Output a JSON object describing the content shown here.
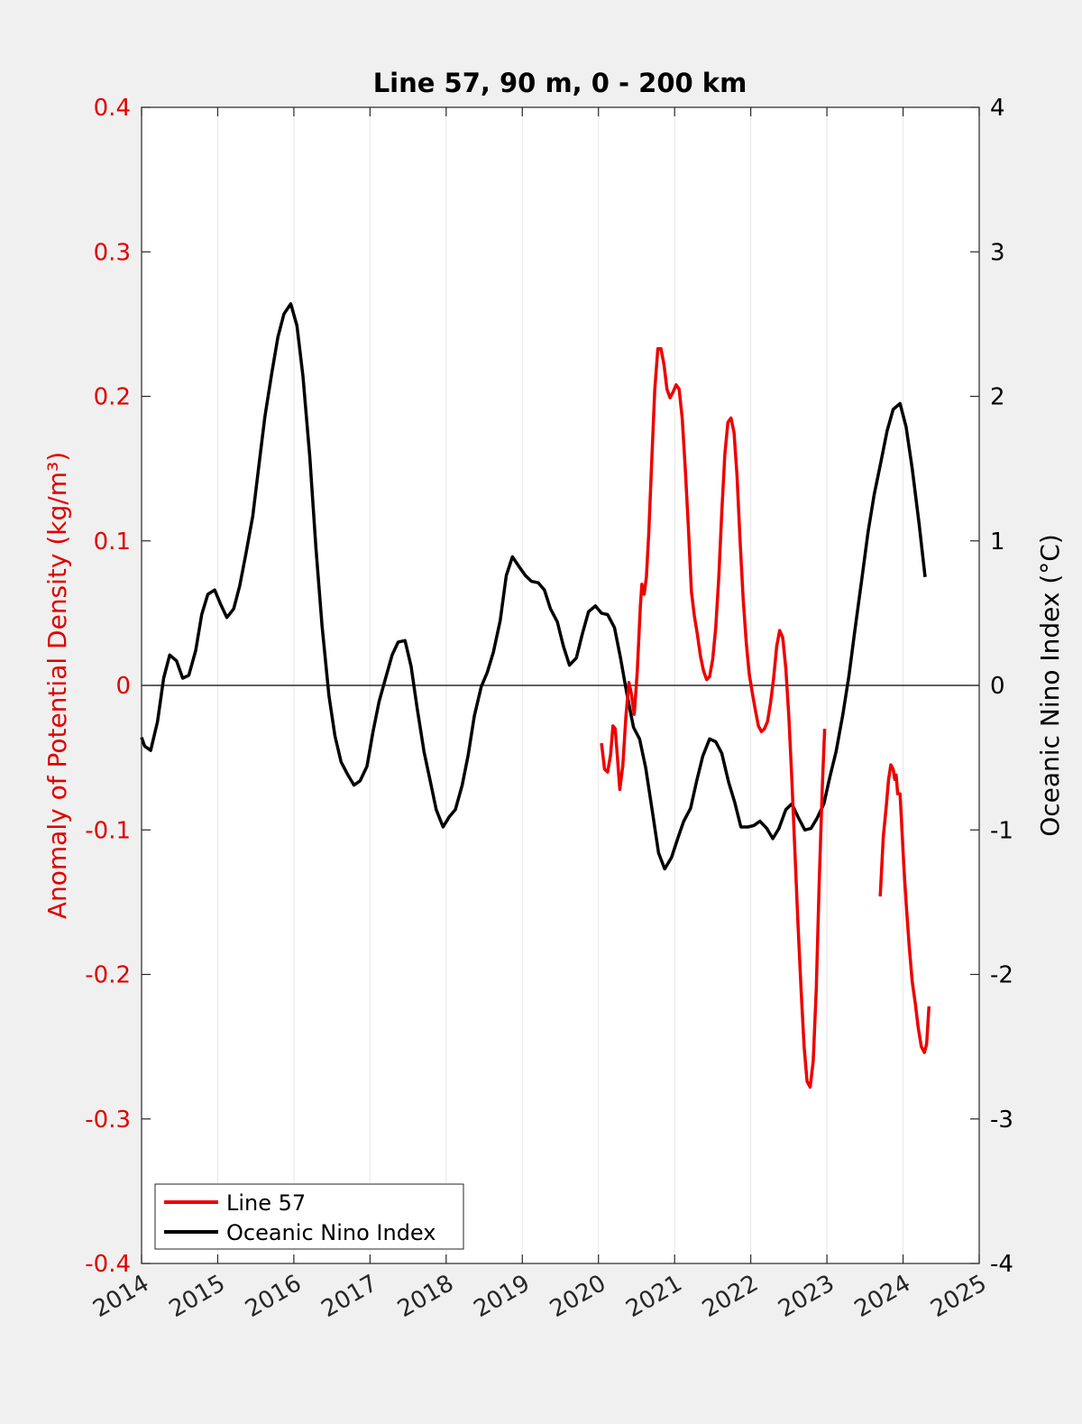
{
  "chart_data": {
    "type": "line",
    "title": "Line 57, 90 m, 0 - 200 km",
    "xlabel": "",
    "ylabel_left": "Anomaly of Potential Density (kg/m³)",
    "ylabel_right": "Oceanic Nino Index (°C)",
    "xlim": [
      2014,
      2025
    ],
    "ylim_left": [
      -0.4,
      0.4
    ],
    "ylim_right": [
      -4,
      4
    ],
    "x_ticks": [
      "2014",
      "2015",
      "2016",
      "2017",
      "2018",
      "2019",
      "2020",
      "2021",
      "2022",
      "2023",
      "2024",
      "2025"
    ],
    "y_ticks_left": [
      "-0.4",
      "-0.3",
      "-0.2",
      "-0.1",
      "0",
      "0.1",
      "0.2",
      "0.3",
      "0.4"
    ],
    "y_ticks_right": [
      "-4",
      "-3",
      "-2",
      "-1",
      "0",
      "1",
      "2",
      "3",
      "4"
    ],
    "grid": "vertical",
    "zero_line": true,
    "legend_position": "bottom-left",
    "colors": {
      "left_axis": "#e00000",
      "right_axis": "#000000",
      "figure_bg": "#f0f0f0",
      "axes_bg": "#ffffff",
      "grid": "#e6e6e6"
    },
    "series": [
      {
        "name": "Line 57",
        "axis": "left",
        "color": "#ee0000",
        "segments": [
          [
            [
              2020.04,
              -0.04
            ],
            [
              2020.08,
              -0.058
            ],
            [
              2020.12,
              -0.06
            ],
            [
              2020.16,
              -0.048
            ],
            [
              2020.19,
              -0.028
            ],
            [
              2020.22,
              -0.03
            ],
            [
              2020.25,
              -0.05
            ],
            [
              2020.28,
              -0.072
            ],
            [
              2020.32,
              -0.055
            ],
            [
              2020.36,
              -0.022
            ],
            [
              2020.4,
              0.002
            ],
            [
              2020.43,
              -0.005
            ],
            [
              2020.47,
              -0.02
            ],
            [
              2020.51,
              0.01
            ],
            [
              2020.55,
              0.055
            ],
            [
              2020.57,
              0.07
            ],
            [
              2020.6,
              0.063
            ],
            [
              2020.63,
              0.075
            ],
            [
              2020.66,
              0.105
            ],
            [
              2020.7,
              0.155
            ],
            [
              2020.74,
              0.205
            ],
            [
              2020.78,
              0.233
            ],
            [
              2020.82,
              0.233
            ],
            [
              2020.86,
              0.222
            ],
            [
              2020.9,
              0.205
            ],
            [
              2020.94,
              0.199
            ],
            [
              2020.98,
              0.203
            ],
            [
              2021.02,
              0.208
            ],
            [
              2021.06,
              0.205
            ],
            [
              2021.1,
              0.185
            ],
            [
              2021.14,
              0.15
            ],
            [
              2021.18,
              0.11
            ],
            [
              2021.22,
              0.065
            ],
            [
              2021.26,
              0.048
            ],
            [
              2021.3,
              0.035
            ],
            [
              2021.34,
              0.02
            ],
            [
              2021.38,
              0.01
            ],
            [
              2021.42,
              0.004
            ],
            [
              2021.46,
              0.006
            ],
            [
              2021.5,
              0.018
            ],
            [
              2021.54,
              0.04
            ],
            [
              2021.58,
              0.075
            ],
            [
              2021.62,
              0.12
            ],
            [
              2021.66,
              0.16
            ],
            [
              2021.7,
              0.182
            ],
            [
              2021.74,
              0.185
            ],
            [
              2021.78,
              0.175
            ],
            [
              2021.82,
              0.145
            ],
            [
              2021.86,
              0.1
            ],
            [
              2021.9,
              0.06
            ],
            [
              2021.94,
              0.03
            ],
            [
              2021.98,
              0.008
            ],
            [
              2022.02,
              -0.005
            ],
            [
              2022.06,
              -0.017
            ],
            [
              2022.1,
              -0.028
            ],
            [
              2022.14,
              -0.032
            ],
            [
              2022.18,
              -0.03
            ],
            [
              2022.22,
              -0.025
            ],
            [
              2022.26,
              -0.012
            ],
            [
              2022.3,
              0.005
            ],
            [
              2022.34,
              0.027
            ],
            [
              2022.38,
              0.038
            ],
            [
              2022.42,
              0.033
            ],
            [
              2022.46,
              0.012
            ],
            [
              2022.5,
              -0.022
            ],
            [
              2022.54,
              -0.065
            ],
            [
              2022.58,
              -0.115
            ],
            [
              2022.62,
              -0.165
            ],
            [
              2022.66,
              -0.21
            ],
            [
              2022.7,
              -0.25
            ],
            [
              2022.74,
              -0.274
            ],
            [
              2022.78,
              -0.278
            ],
            [
              2022.82,
              -0.26
            ],
            [
              2022.86,
              -0.21
            ],
            [
              2022.9,
              -0.135
            ],
            [
              2022.94,
              -0.07
            ],
            [
              2022.97,
              -0.03
            ]
          ],
          [
            [
              2023.7,
              -0.146
            ],
            [
              2023.74,
              -0.105
            ],
            [
              2023.78,
              -0.083
            ],
            [
              2023.81,
              -0.065
            ],
            [
              2023.84,
              -0.055
            ],
            [
              2023.87,
              -0.058
            ],
            [
              2023.89,
              -0.065
            ],
            [
              2023.91,
              -0.062
            ],
            [
              2023.93,
              -0.075
            ],
            [
              2023.96,
              -0.075
            ],
            [
              2023.98,
              -0.095
            ],
            [
              2024.01,
              -0.125
            ],
            [
              2024.04,
              -0.15
            ],
            [
              2024.08,
              -0.18
            ],
            [
              2024.12,
              -0.205
            ],
            [
              2024.16,
              -0.22
            ],
            [
              2024.2,
              -0.237
            ],
            [
              2024.24,
              -0.25
            ],
            [
              2024.28,
              -0.254
            ],
            [
              2024.31,
              -0.248
            ],
            [
              2024.34,
              -0.222
            ]
          ]
        ]
      },
      {
        "name": "Oceanic Nino Index",
        "axis": "right",
        "color": "#000000",
        "points": [
          [
            2014.0,
            -0.36
          ],
          [
            2014.04,
            -0.42
          ],
          [
            2014.12,
            -0.45
          ],
          [
            2014.21,
            -0.25
          ],
          [
            2014.29,
            0.05
          ],
          [
            2014.37,
            0.21
          ],
          [
            2014.46,
            0.17
          ],
          [
            2014.54,
            0.05
          ],
          [
            2014.62,
            0.07
          ],
          [
            2014.71,
            0.24
          ],
          [
            2014.79,
            0.49
          ],
          [
            2014.87,
            0.63
          ],
          [
            2014.96,
            0.66
          ],
          [
            2015.04,
            0.56
          ],
          [
            2015.12,
            0.47
          ],
          [
            2015.21,
            0.53
          ],
          [
            2015.29,
            0.69
          ],
          [
            2015.37,
            0.91
          ],
          [
            2015.46,
            1.17
          ],
          [
            2015.54,
            1.52
          ],
          [
            2015.62,
            1.86
          ],
          [
            2015.71,
            2.16
          ],
          [
            2015.79,
            2.41
          ],
          [
            2015.87,
            2.57
          ],
          [
            2015.96,
            2.64
          ],
          [
            2016.04,
            2.49
          ],
          [
            2016.12,
            2.14
          ],
          [
            2016.21,
            1.58
          ],
          [
            2016.29,
            0.95
          ],
          [
            2016.37,
            0.41
          ],
          [
            2016.46,
            -0.07
          ],
          [
            2016.54,
            -0.35
          ],
          [
            2016.62,
            -0.53
          ],
          [
            2016.71,
            -0.62
          ],
          [
            2016.79,
            -0.69
          ],
          [
            2016.87,
            -0.66
          ],
          [
            2016.96,
            -0.56
          ],
          [
            2017.04,
            -0.32
          ],
          [
            2017.12,
            -0.11
          ],
          [
            2017.21,
            0.06
          ],
          [
            2017.29,
            0.21
          ],
          [
            2017.37,
            0.3
          ],
          [
            2017.46,
            0.31
          ],
          [
            2017.54,
            0.13
          ],
          [
            2017.62,
            -0.16
          ],
          [
            2017.71,
            -0.46
          ],
          [
            2017.79,
            -0.66
          ],
          [
            2017.87,
            -0.86
          ],
          [
            2017.96,
            -0.98
          ],
          [
            2018.04,
            -0.91
          ],
          [
            2018.12,
            -0.86
          ],
          [
            2018.21,
            -0.69
          ],
          [
            2018.29,
            -0.48
          ],
          [
            2018.37,
            -0.21
          ],
          [
            2018.46,
            -0.01
          ],
          [
            2018.54,
            0.09
          ],
          [
            2018.62,
            0.23
          ],
          [
            2018.71,
            0.45
          ],
          [
            2018.79,
            0.76
          ],
          [
            2018.87,
            0.89
          ],
          [
            2018.96,
            0.82
          ],
          [
            2019.04,
            0.76
          ],
          [
            2019.12,
            0.72
          ],
          [
            2019.21,
            0.71
          ],
          [
            2019.29,
            0.66
          ],
          [
            2019.37,
            0.53
          ],
          [
            2019.46,
            0.44
          ],
          [
            2019.54,
            0.27
          ],
          [
            2019.62,
            0.14
          ],
          [
            2019.71,
            0.19
          ],
          [
            2019.79,
            0.36
          ],
          [
            2019.87,
            0.51
          ],
          [
            2019.96,
            0.55
          ],
          [
            2020.04,
            0.5
          ],
          [
            2020.12,
            0.49
          ],
          [
            2020.21,
            0.4
          ],
          [
            2020.29,
            0.19
          ],
          [
            2020.37,
            -0.05
          ],
          [
            2020.46,
            -0.29
          ],
          [
            2020.54,
            -0.37
          ],
          [
            2020.62,
            -0.57
          ],
          [
            2020.71,
            -0.88
          ],
          [
            2020.79,
            -1.16
          ],
          [
            2020.87,
            -1.27
          ],
          [
            2020.96,
            -1.19
          ],
          [
            2021.04,
            -1.06
          ],
          [
            2021.12,
            -0.94
          ],
          [
            2021.21,
            -0.85
          ],
          [
            2021.29,
            -0.66
          ],
          [
            2021.37,
            -0.49
          ],
          [
            2021.46,
            -0.37
          ],
          [
            2021.54,
            -0.39
          ],
          [
            2021.62,
            -0.47
          ],
          [
            2021.71,
            -0.67
          ],
          [
            2021.79,
            -0.81
          ],
          [
            2021.87,
            -0.98
          ],
          [
            2021.96,
            -0.98
          ],
          [
            2022.04,
            -0.97
          ],
          [
            2022.12,
            -0.94
          ],
          [
            2022.21,
            -0.99
          ],
          [
            2022.29,
            -1.06
          ],
          [
            2022.37,
            -0.99
          ],
          [
            2022.46,
            -0.86
          ],
          [
            2022.54,
            -0.82
          ],
          [
            2022.62,
            -0.91
          ],
          [
            2022.71,
            -1.0
          ],
          [
            2022.79,
            -0.99
          ],
          [
            2022.87,
            -0.92
          ],
          [
            2022.96,
            -0.82
          ],
          [
            2023.04,
            -0.63
          ],
          [
            2023.12,
            -0.46
          ],
          [
            2023.21,
            -0.2
          ],
          [
            2023.29,
            0.07
          ],
          [
            2023.37,
            0.39
          ],
          [
            2023.46,
            0.74
          ],
          [
            2023.54,
            1.06
          ],
          [
            2023.62,
            1.32
          ],
          [
            2023.71,
            1.55
          ],
          [
            2023.79,
            1.76
          ],
          [
            2023.87,
            1.91
          ],
          [
            2023.96,
            1.95
          ],
          [
            2024.04,
            1.79
          ],
          [
            2024.12,
            1.5
          ],
          [
            2024.21,
            1.12
          ],
          [
            2024.29,
            0.75
          ]
        ]
      }
    ]
  }
}
